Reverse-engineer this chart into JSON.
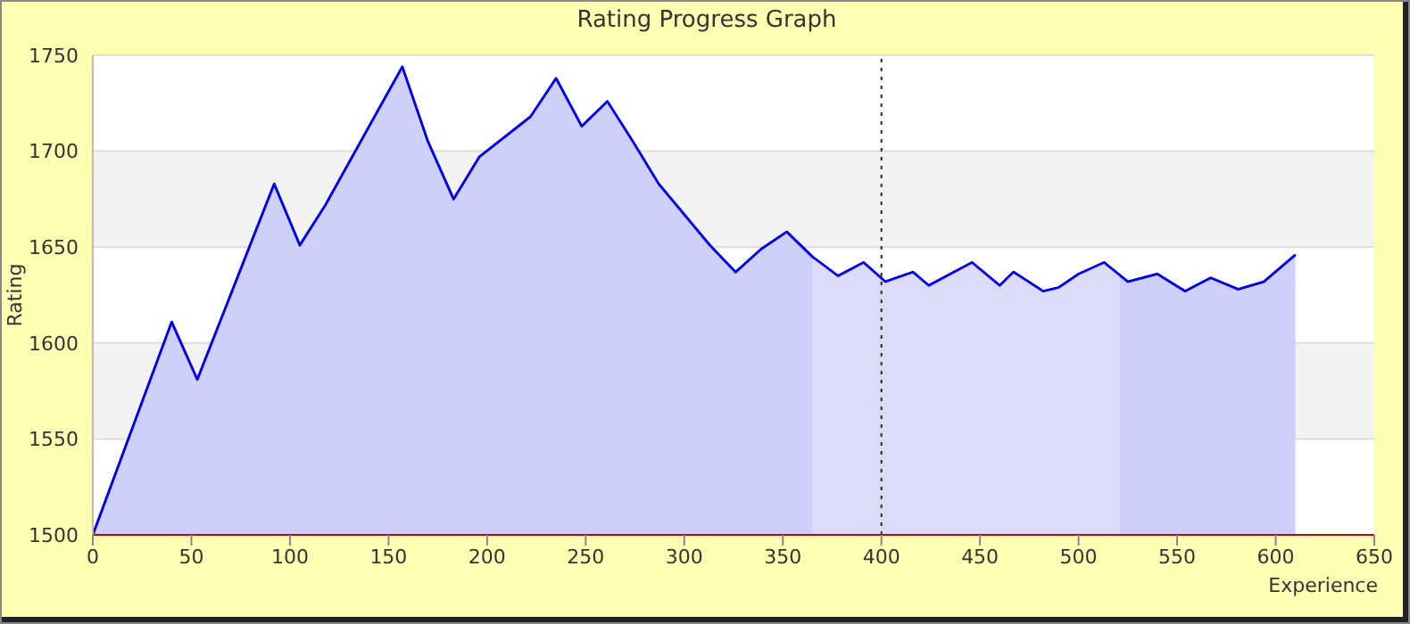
{
  "chart_data": {
    "type": "area",
    "title": "Rating Progress Graph",
    "xlabel": "Experience",
    "ylabel": "Rating",
    "x": [
      0,
      40,
      53,
      92,
      105,
      118,
      145,
      157,
      170,
      183,
      196,
      222,
      235,
      248,
      261,
      274,
      287,
      300,
      313,
      326,
      339,
      352,
      365,
      378,
      391,
      402,
      416,
      424,
      446,
      460,
      467,
      482,
      490,
      500,
      513,
      525,
      540,
      554,
      567,
      581,
      594,
      610
    ],
    "series": [
      {
        "color": "#0000ee",
        "values": [
          1500,
          1611,
          1581,
          1683,
          1651,
          1672,
          1722,
          1744,
          1705,
          1675,
          1697,
          1718,
          1738,
          1713,
          1726,
          1705,
          1683,
          1667,
          1651,
          1637,
          1649,
          1658,
          1645,
          1635,
          1642,
          1632,
          1637,
          1630,
          1642,
          1630,
          1637,
          1627,
          1629,
          1636,
          1642,
          1632,
          1636,
          1627,
          1634,
          1628,
          1632,
          1646
        ]
      }
    ],
    "xlim": [
      0,
      650
    ],
    "xticks": [
      0,
      50,
      100,
      150,
      200,
      250,
      300,
      350,
      400,
      450,
      500,
      550,
      600,
      650
    ],
    "ylim": [
      1500,
      1750
    ],
    "yticks": [
      1500,
      1550,
      1600,
      1650,
      1700,
      1750
    ],
    "grid": "y",
    "ref_lines": [
      {
        "axis": "x",
        "value": 400,
        "color": "#004400",
        "line_style": "dotted"
      }
    ],
    "bands": [
      {
        "axis": "x",
        "from": 365,
        "to": 521,
        "color": "#e0e0fa"
      }
    ]
  }
}
